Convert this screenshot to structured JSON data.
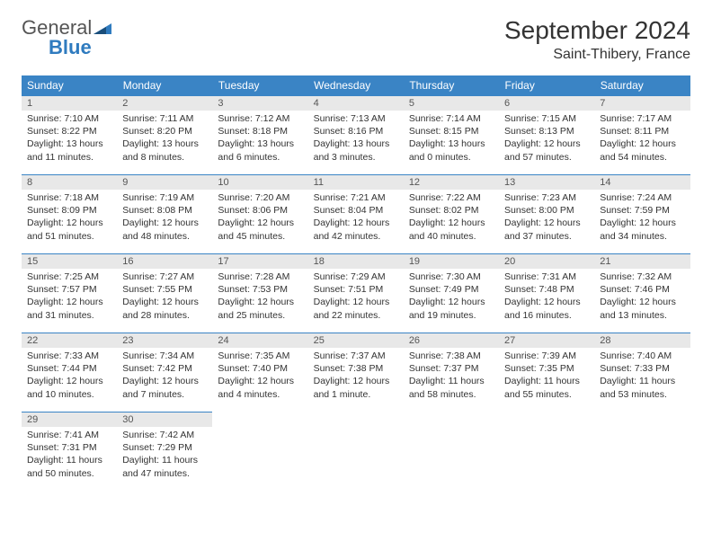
{
  "brand": {
    "name1": "General",
    "name2": "Blue"
  },
  "title": "September 2024",
  "location": "Saint-Thibery, France",
  "colors": {
    "header_bg": "#3a84c5",
    "header_text": "#ffffff",
    "daynum_bg": "#e8e8e8",
    "border": "#3a84c5",
    "brand_blue": "#2f7bbf",
    "text": "#333333"
  },
  "weekdays": [
    "Sunday",
    "Monday",
    "Tuesday",
    "Wednesday",
    "Thursday",
    "Friday",
    "Saturday"
  ],
  "days": [
    {
      "n": 1,
      "sunrise": "7:10 AM",
      "sunset": "8:22 PM",
      "daylight": "13 hours and 11 minutes."
    },
    {
      "n": 2,
      "sunrise": "7:11 AM",
      "sunset": "8:20 PM",
      "daylight": "13 hours and 8 minutes."
    },
    {
      "n": 3,
      "sunrise": "7:12 AM",
      "sunset": "8:18 PM",
      "daylight": "13 hours and 6 minutes."
    },
    {
      "n": 4,
      "sunrise": "7:13 AM",
      "sunset": "8:16 PM",
      "daylight": "13 hours and 3 minutes."
    },
    {
      "n": 5,
      "sunrise": "7:14 AM",
      "sunset": "8:15 PM",
      "daylight": "13 hours and 0 minutes."
    },
    {
      "n": 6,
      "sunrise": "7:15 AM",
      "sunset": "8:13 PM",
      "daylight": "12 hours and 57 minutes."
    },
    {
      "n": 7,
      "sunrise": "7:17 AM",
      "sunset": "8:11 PM",
      "daylight": "12 hours and 54 minutes."
    },
    {
      "n": 8,
      "sunrise": "7:18 AM",
      "sunset": "8:09 PM",
      "daylight": "12 hours and 51 minutes."
    },
    {
      "n": 9,
      "sunrise": "7:19 AM",
      "sunset": "8:08 PM",
      "daylight": "12 hours and 48 minutes."
    },
    {
      "n": 10,
      "sunrise": "7:20 AM",
      "sunset": "8:06 PM",
      "daylight": "12 hours and 45 minutes."
    },
    {
      "n": 11,
      "sunrise": "7:21 AM",
      "sunset": "8:04 PM",
      "daylight": "12 hours and 42 minutes."
    },
    {
      "n": 12,
      "sunrise": "7:22 AM",
      "sunset": "8:02 PM",
      "daylight": "12 hours and 40 minutes."
    },
    {
      "n": 13,
      "sunrise": "7:23 AM",
      "sunset": "8:00 PM",
      "daylight": "12 hours and 37 minutes."
    },
    {
      "n": 14,
      "sunrise": "7:24 AM",
      "sunset": "7:59 PM",
      "daylight": "12 hours and 34 minutes."
    },
    {
      "n": 15,
      "sunrise": "7:25 AM",
      "sunset": "7:57 PM",
      "daylight": "12 hours and 31 minutes."
    },
    {
      "n": 16,
      "sunrise": "7:27 AM",
      "sunset": "7:55 PM",
      "daylight": "12 hours and 28 minutes."
    },
    {
      "n": 17,
      "sunrise": "7:28 AM",
      "sunset": "7:53 PM",
      "daylight": "12 hours and 25 minutes."
    },
    {
      "n": 18,
      "sunrise": "7:29 AM",
      "sunset": "7:51 PM",
      "daylight": "12 hours and 22 minutes."
    },
    {
      "n": 19,
      "sunrise": "7:30 AM",
      "sunset": "7:49 PM",
      "daylight": "12 hours and 19 minutes."
    },
    {
      "n": 20,
      "sunrise": "7:31 AM",
      "sunset": "7:48 PM",
      "daylight": "12 hours and 16 minutes."
    },
    {
      "n": 21,
      "sunrise": "7:32 AM",
      "sunset": "7:46 PM",
      "daylight": "12 hours and 13 minutes."
    },
    {
      "n": 22,
      "sunrise": "7:33 AM",
      "sunset": "7:44 PM",
      "daylight": "12 hours and 10 minutes."
    },
    {
      "n": 23,
      "sunrise": "7:34 AM",
      "sunset": "7:42 PM",
      "daylight": "12 hours and 7 minutes."
    },
    {
      "n": 24,
      "sunrise": "7:35 AM",
      "sunset": "7:40 PM",
      "daylight": "12 hours and 4 minutes."
    },
    {
      "n": 25,
      "sunrise": "7:37 AM",
      "sunset": "7:38 PM",
      "daylight": "12 hours and 1 minute."
    },
    {
      "n": 26,
      "sunrise": "7:38 AM",
      "sunset": "7:37 PM",
      "daylight": "11 hours and 58 minutes."
    },
    {
      "n": 27,
      "sunrise": "7:39 AM",
      "sunset": "7:35 PM",
      "daylight": "11 hours and 55 minutes."
    },
    {
      "n": 28,
      "sunrise": "7:40 AM",
      "sunset": "7:33 PM",
      "daylight": "11 hours and 53 minutes."
    },
    {
      "n": 29,
      "sunrise": "7:41 AM",
      "sunset": "7:31 PM",
      "daylight": "11 hours and 50 minutes."
    },
    {
      "n": 30,
      "sunrise": "7:42 AM",
      "sunset": "7:29 PM",
      "daylight": "11 hours and 47 minutes."
    }
  ],
  "labels": {
    "sunrise": "Sunrise:",
    "sunset": "Sunset:",
    "daylight": "Daylight:"
  }
}
